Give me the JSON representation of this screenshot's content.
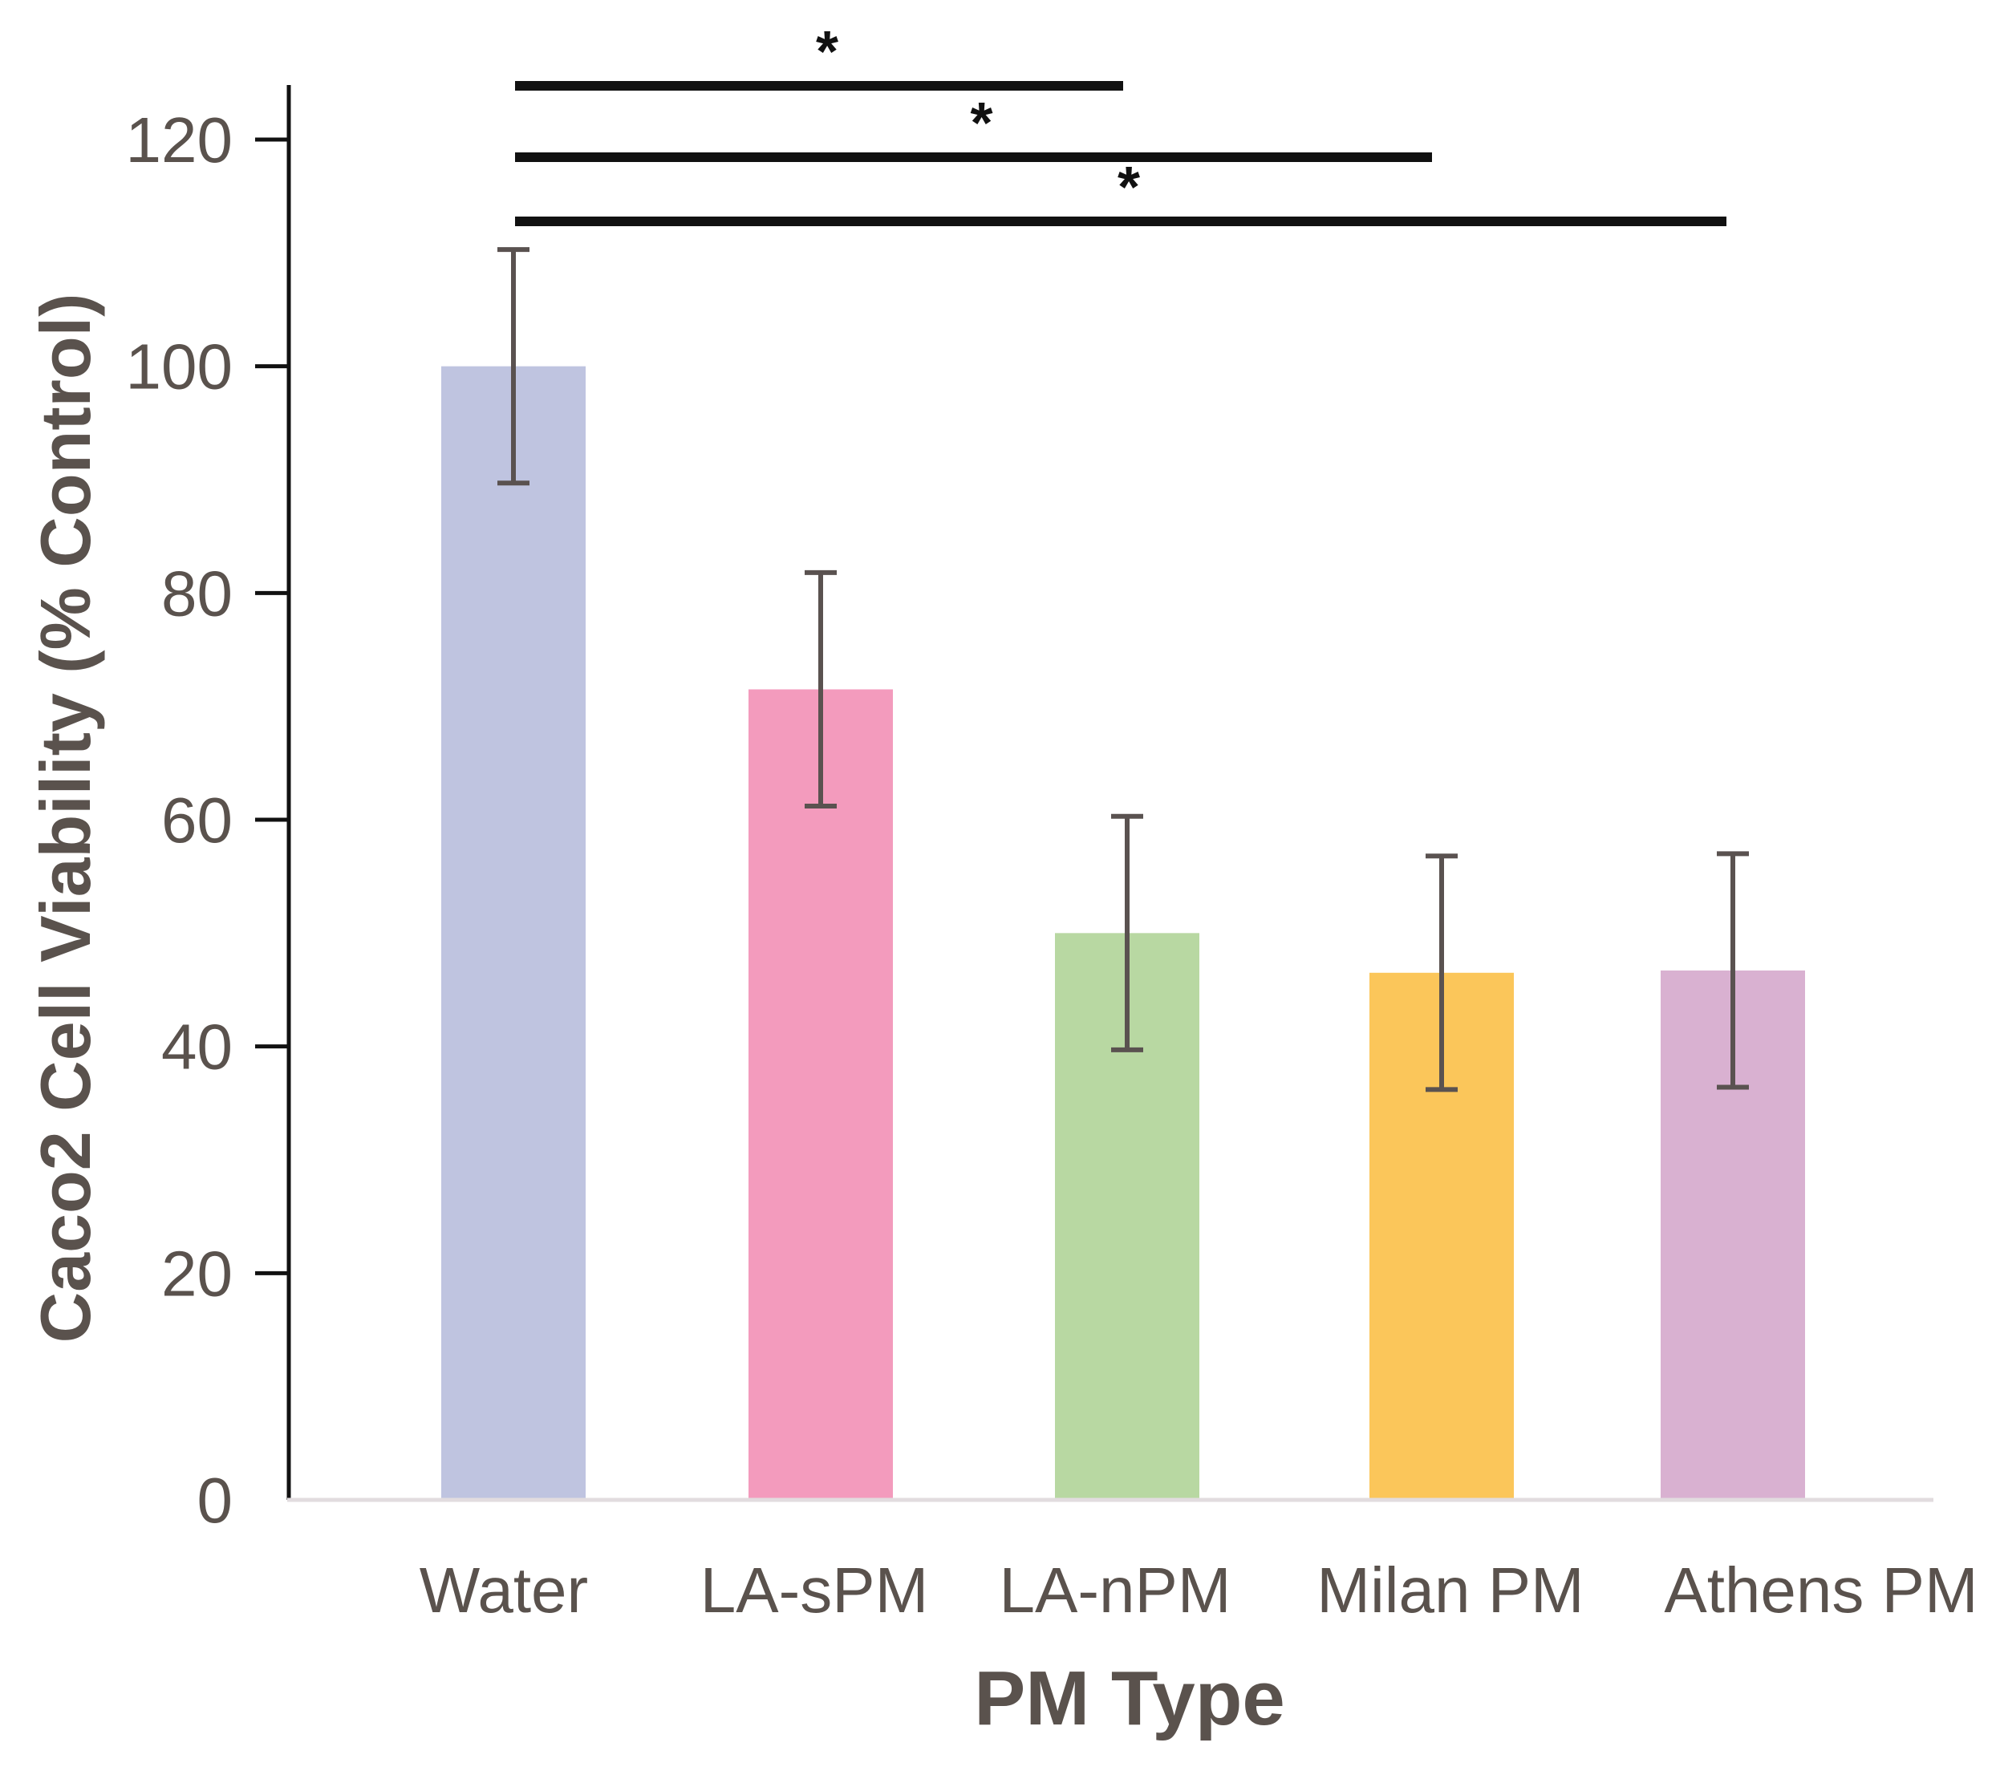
{
  "chart_data": {
    "type": "bar",
    "title": "",
    "xlabel": "PM Type",
    "ylabel": "Caco2 Cell Viability (% Control)",
    "ylim": [
      0,
      120
    ],
    "yticks": [
      0,
      20,
      40,
      60,
      80,
      100,
      120
    ],
    "categories": [
      "Water",
      "LA-sPM",
      "LA-nPM",
      "Milan PM",
      "Athens PM"
    ],
    "values": [
      100,
      71.5,
      50,
      46.5,
      46.7
    ],
    "errors": [
      10.3,
      10.3,
      10.3,
      10.3,
      10.3
    ],
    "colors": [
      "#bfc4e0",
      "#f39bbd",
      "#b8d8a2",
      "#fbc65a",
      "#d9b1d1"
    ],
    "grid": false,
    "legend": "none",
    "significance": [
      {
        "from": "Water",
        "to": "LA-nPM",
        "label": "*"
      },
      {
        "from": "Water",
        "to": "Milan PM",
        "label": "*"
      },
      {
        "from": "Water",
        "to": "Athens PM",
        "label": "*"
      }
    ]
  }
}
